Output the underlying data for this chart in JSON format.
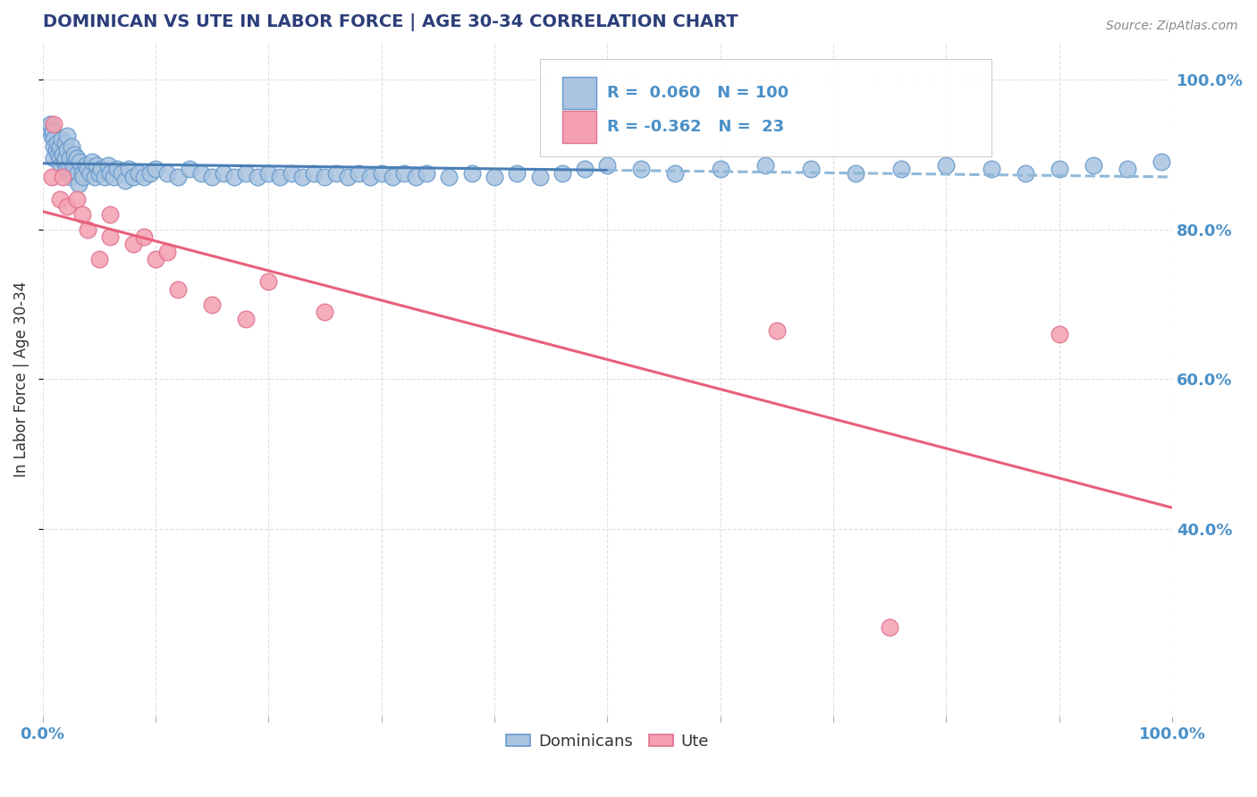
{
  "title": "DOMINICAN VS UTE IN LABOR FORCE | AGE 30-34 CORRELATION CHART",
  "source_text": "Source: ZipAtlas.com",
  "ylabel": "In Labor Force | Age 30-34",
  "ylabel_ticks": [
    "40.0%",
    "60.0%",
    "80.0%",
    "100.0%"
  ],
  "ylabel_tick_vals": [
    0.4,
    0.6,
    0.8,
    1.0
  ],
  "r_dominican": 0.06,
  "n_dominican": 100,
  "r_ute": -0.362,
  "n_ute": 23,
  "dominican_color": "#aac4e0",
  "dominican_edge": "#6699cc",
  "ute_color": "#f4a0b0",
  "ute_edge": "#e07090",
  "trendline_dominican_solid_color": "#4a7fb5",
  "trendline_dominican_dash_color": "#90b8d8",
  "trendline_ute_color": "#e8607a",
  "background_color": "#ffffff",
  "title_color": "#2c3e7a",
  "axis_label_color": "#4a90c8",
  "legend_r_color": "#4a90c8",
  "dominican_x": [
    0.005,
    0.007,
    0.008,
    0.009,
    0.01,
    0.01,
    0.01,
    0.012,
    0.013,
    0.014,
    0.015,
    0.015,
    0.016,
    0.017,
    0.018,
    0.019,
    0.02,
    0.02,
    0.021,
    0.022,
    0.022,
    0.023,
    0.024,
    0.025,
    0.026,
    0.027,
    0.028,
    0.03,
    0.031,
    0.032,
    0.033,
    0.035,
    0.036,
    0.038,
    0.04,
    0.042,
    0.044,
    0.046,
    0.048,
    0.05,
    0.052,
    0.055,
    0.058,
    0.06,
    0.063,
    0.066,
    0.07,
    0.073,
    0.076,
    0.08,
    0.085,
    0.09,
    0.095,
    0.1,
    0.11,
    0.12,
    0.13,
    0.14,
    0.15,
    0.16,
    0.17,
    0.18,
    0.19,
    0.2,
    0.21,
    0.22,
    0.23,
    0.24,
    0.25,
    0.26,
    0.27,
    0.28,
    0.29,
    0.3,
    0.31,
    0.32,
    0.33,
    0.34,
    0.36,
    0.38,
    0.4,
    0.42,
    0.44,
    0.46,
    0.48,
    0.5,
    0.53,
    0.56,
    0.6,
    0.64,
    0.68,
    0.72,
    0.76,
    0.8,
    0.84,
    0.87,
    0.9,
    0.93,
    0.96,
    0.99
  ],
  "dominican_y": [
    0.935,
    0.94,
    0.925,
    0.93,
    0.895,
    0.92,
    0.91,
    0.905,
    0.915,
    0.9,
    0.895,
    0.91,
    0.885,
    0.92,
    0.9,
    0.89,
    0.895,
    0.915,
    0.88,
    0.905,
    0.925,
    0.88,
    0.895,
    0.87,
    0.91,
    0.885,
    0.9,
    0.895,
    0.875,
    0.86,
    0.89,
    0.875,
    0.87,
    0.885,
    0.88,
    0.875,
    0.89,
    0.87,
    0.885,
    0.875,
    0.88,
    0.87,
    0.885,
    0.875,
    0.87,
    0.88,
    0.875,
    0.865,
    0.88,
    0.87,
    0.875,
    0.87,
    0.875,
    0.88,
    0.875,
    0.87,
    0.88,
    0.875,
    0.87,
    0.875,
    0.87,
    0.875,
    0.87,
    0.875,
    0.87,
    0.875,
    0.87,
    0.875,
    0.87,
    0.875,
    0.87,
    0.875,
    0.87,
    0.875,
    0.87,
    0.875,
    0.87,
    0.875,
    0.87,
    0.875,
    0.87,
    0.875,
    0.87,
    0.875,
    0.88,
    0.885,
    0.88,
    0.875,
    0.88,
    0.885,
    0.88,
    0.875,
    0.88,
    0.885,
    0.88,
    0.875,
    0.88,
    0.885,
    0.88,
    0.89
  ],
  "ute_x": [
    0.008,
    0.01,
    0.015,
    0.018,
    0.022,
    0.03,
    0.035,
    0.04,
    0.05,
    0.06,
    0.08,
    0.1,
    0.12,
    0.15,
    0.18,
    0.2,
    0.25,
    0.06,
    0.09,
    0.11,
    0.65,
    0.75,
    0.9
  ],
  "ute_y": [
    0.87,
    0.94,
    0.84,
    0.87,
    0.83,
    0.84,
    0.82,
    0.8,
    0.76,
    0.79,
    0.78,
    0.76,
    0.72,
    0.7,
    0.68,
    0.73,
    0.69,
    0.82,
    0.79,
    0.77,
    0.665,
    0.27,
    0.66
  ],
  "xlim": [
    0.0,
    1.0
  ],
  "ylim": [
    0.15,
    1.05
  ],
  "figsize": [
    14.06,
    8.92
  ],
  "dpi": 100
}
